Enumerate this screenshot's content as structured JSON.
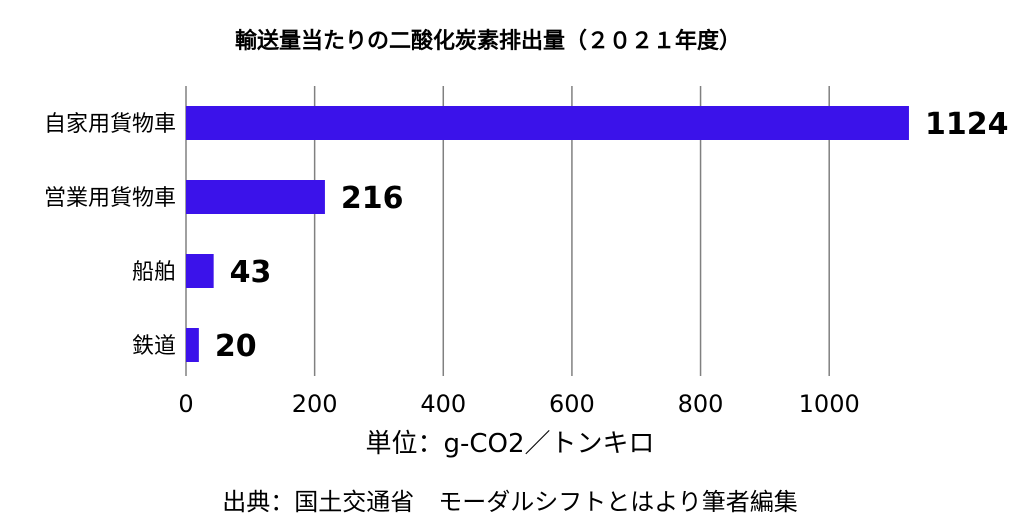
{
  "chart_data": {
    "type": "bar",
    "orientation": "horizontal",
    "title": "輸送量当たりの二酸化炭素排出量（２０２１年度）",
    "categories": [
      "自家用貨物車",
      "営業用貨物車",
      "船舶",
      "鉄道"
    ],
    "values": [
      1124,
      216,
      43,
      20
    ],
    "value_labels": [
      "1124",
      "216",
      "43",
      "20"
    ],
    "xlim": [
      0,
      1100
    ],
    "xticks": [
      0,
      200,
      400,
      600,
      800,
      1000
    ],
    "xlabel": "単位：g-CO2／トンキロ",
    "grid": "vertical",
    "bar_color": "#3b12ea"
  },
  "source_note": "出典：国土交通省　モーダルシフトとはより筆者編集"
}
